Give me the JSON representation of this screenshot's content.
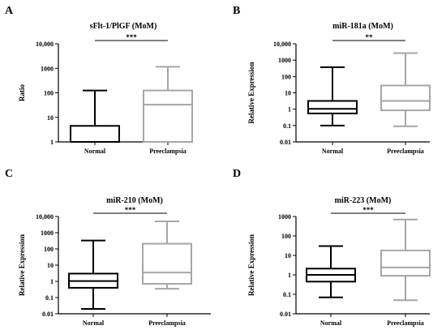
{
  "chart_data": [
    {
      "panel_label": "A",
      "type": "boxplot",
      "title": "sFlt-1/PlGF (MoM)",
      "ylabel": "Ratio",
      "yscale": "log",
      "ylim": [
        1,
        10000
      ],
      "yticks": [
        "1",
        "10",
        "100",
        "1000",
        "10,000"
      ],
      "categories": [
        "Normal",
        "Preeclampsia"
      ],
      "significance": "***",
      "boxes": [
        {
          "category": "Normal",
          "whisker_min": 1,
          "q1": 1,
          "median": 1,
          "q3": 4.5,
          "whisker_max": 125,
          "color": "#000000"
        },
        {
          "category": "Preeclampsia",
          "whisker_min": 1,
          "q1": 1,
          "median": 33,
          "q3": 125,
          "whisker_max": 1150,
          "color": "#a6a6a6"
        }
      ]
    },
    {
      "panel_label": "B",
      "type": "boxplot",
      "title": "miR-181a (MoM)",
      "ylabel": "Relative Expression",
      "yscale": "log",
      "ylim": [
        0.01,
        10000
      ],
      "yticks": [
        "0.01",
        "0.1",
        "1",
        "10",
        "100",
        "1000",
        "10,000"
      ],
      "categories": [
        "Normal",
        "Preeclampsia"
      ],
      "significance": "**",
      "boxes": [
        {
          "category": "Normal",
          "whisker_min": 0.1,
          "q1": 0.55,
          "median": 1.05,
          "q3": 3.2,
          "whisker_max": 370,
          "color": "#000000"
        },
        {
          "category": "Preeclampsia",
          "whisker_min": 0.09,
          "q1": 0.85,
          "median": 3.2,
          "q3": 28,
          "whisker_max": 2700,
          "color": "#a6a6a6"
        }
      ]
    },
    {
      "panel_label": "C",
      "type": "boxplot",
      "title": "miR-210 (MoM)",
      "ylabel": "Relative Expression",
      "yscale": "log",
      "ylim": [
        0.01,
        10000
      ],
      "yticks": [
        "0.01",
        "0.1",
        "1",
        "10",
        "100",
        "1000",
        "10,000"
      ],
      "categories": [
        "Normal",
        "Preeclampsia"
      ],
      "significance": "***",
      "boxes": [
        {
          "category": "Normal",
          "whisker_min": 0.02,
          "q1": 0.4,
          "median": 1.05,
          "q3": 3,
          "whisker_max": 330,
          "color": "#000000"
        },
        {
          "category": "Preeclampsia",
          "whisker_min": 0.35,
          "q1": 0.7,
          "median": 3.5,
          "q3": 210,
          "whisker_max": 5000,
          "color": "#a6a6a6"
        }
      ]
    },
    {
      "panel_label": "D",
      "type": "boxplot",
      "title": "miR-223 (MoM)",
      "ylabel": "Relative Expression",
      "yscale": "log",
      "ylim": [
        0.01,
        1000
      ],
      "yticks": [
        "0.01",
        "0.1",
        "1",
        "10",
        "100",
        "1000"
      ],
      "categories": [
        "Normal",
        "Preeclampsia"
      ],
      "significance": "***",
      "boxes": [
        {
          "category": "Normal",
          "whisker_min": 0.07,
          "q1": 0.45,
          "median": 1,
          "q3": 2.1,
          "whisker_max": 30,
          "color": "#000000"
        },
        {
          "category": "Preeclampsia",
          "whisker_min": 0.05,
          "q1": 0.9,
          "median": 2.4,
          "q3": 18,
          "whisker_max": 700,
          "color": "#a6a6a6"
        }
      ]
    }
  ]
}
